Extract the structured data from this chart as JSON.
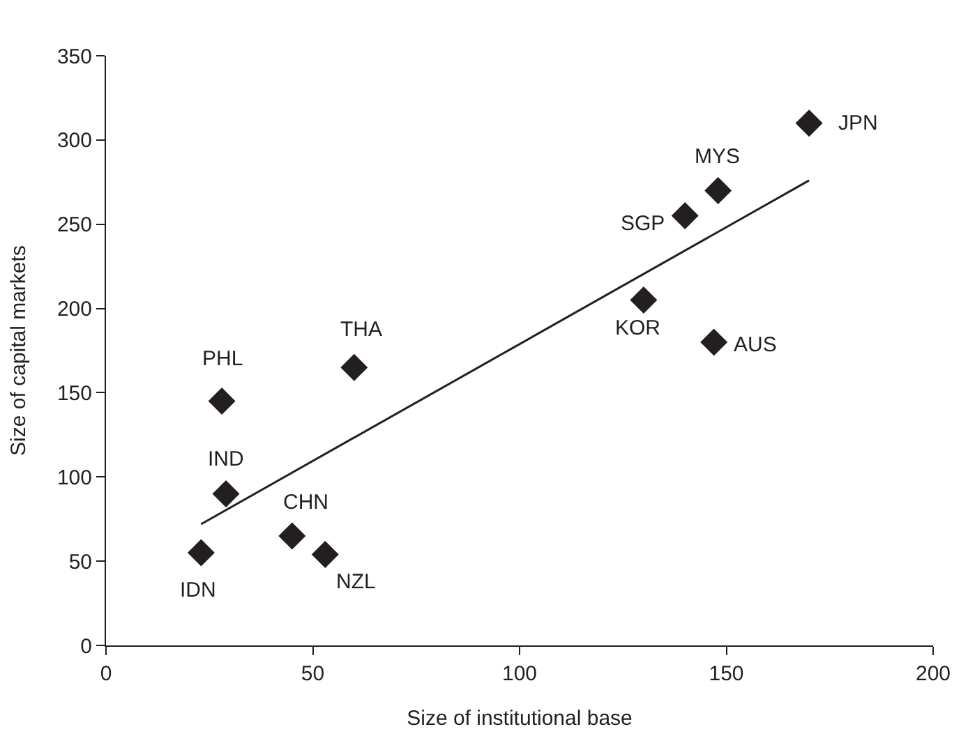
{
  "chart_data": {
    "type": "scatter",
    "xlabel": "Size of institutional base",
    "ylabel": "Size of capital markets",
    "series": [
      {
        "color": "#231f20",
        "marker": "diamond",
        "x": [
          170,
          148,
          140,
          130,
          147,
          60,
          28,
          29,
          23,
          45,
          53
        ],
        "values": [
          310,
          270,
          255,
          205,
          180,
          165,
          145,
          90,
          55,
          65,
          54
        ]
      },
      {
        "type": "line",
        "color": "#231f20",
        "marker": "none",
        "x": [
          23,
          170
        ],
        "values": [
          72,
          276
        ]
      }
    ],
    "annotations": [
      {
        "text": "JPN",
        "x": 170,
        "y": 310
      },
      {
        "text": "MYS",
        "x": 148,
        "y": 270
      },
      {
        "text": "SGP",
        "x": 140,
        "y": 255
      },
      {
        "text": "KOR",
        "x": 130,
        "y": 205
      },
      {
        "text": "AUS",
        "x": 147,
        "y": 180
      },
      {
        "text": "THA",
        "x": 60,
        "y": 165
      },
      {
        "text": "PHL",
        "x": 28,
        "y": 145
      },
      {
        "text": "IND",
        "x": 29,
        "y": 90
      },
      {
        "text": "IDN",
        "x": 23,
        "y": 55
      },
      {
        "text": "CHN",
        "x": 45,
        "y": 65
      },
      {
        "text": "NZL",
        "x": 53,
        "y": 54
      }
    ],
    "xlim": [
      0,
      200
    ],
    "xticks": [
      0,
      50,
      100,
      150,
      200
    ],
    "ylim": [
      0,
      350
    ],
    "yticks": [
      0,
      50,
      100,
      150,
      200,
      250,
      300,
      350
    ],
    "grid": false,
    "legend": false
  }
}
